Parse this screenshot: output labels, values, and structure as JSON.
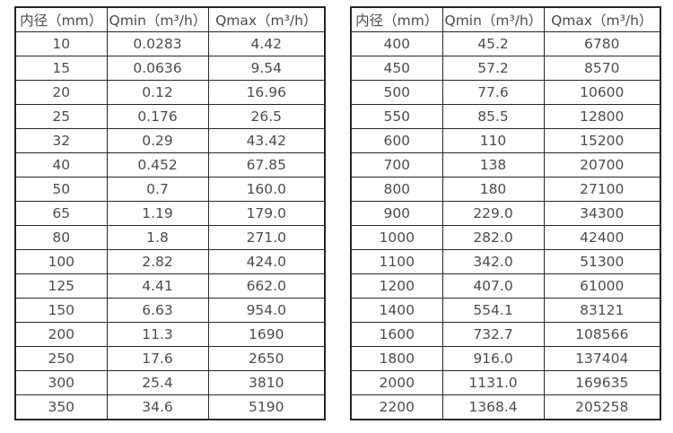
{
  "chart_data": [
    {
      "type": "table",
      "title": "",
      "headers": [
        "内径（mm）",
        "Qmin（m³/h）",
        "Qmax（m³/h）"
      ],
      "rows": [
        [
          "10",
          "0.0283",
          "4.42"
        ],
        [
          "15",
          "0.0636",
          "9.54"
        ],
        [
          "20",
          "0.12",
          "16.96"
        ],
        [
          "25",
          "0.176",
          "26.5"
        ],
        [
          "32",
          "0.29",
          "43.42"
        ],
        [
          "40",
          "0.452",
          "67.85"
        ],
        [
          "50",
          "0.7",
          "160.0"
        ],
        [
          "65",
          "1.19",
          "179.0"
        ],
        [
          "80",
          "1.8",
          "271.0"
        ],
        [
          "100",
          "2.82",
          "424.0"
        ],
        [
          "125",
          "4.41",
          "662.0"
        ],
        [
          "150",
          "6.63",
          "954.0"
        ],
        [
          "200",
          "11.3",
          "1690"
        ],
        [
          "250",
          "17.6",
          "2650"
        ],
        [
          "300",
          "25.4",
          "3810"
        ],
        [
          "350",
          "34.6",
          "5190"
        ]
      ]
    },
    {
      "type": "table",
      "title": "",
      "headers": [
        "内径（mm）",
        "Qmin（m³/h）",
        "Qmax（m³/h）"
      ],
      "rows": [
        [
          "400",
          "45.2",
          "6780"
        ],
        [
          "450",
          "57.2",
          "8570"
        ],
        [
          "500",
          "77.6",
          "10600"
        ],
        [
          "550",
          "85.5",
          "12800"
        ],
        [
          "600",
          "110",
          "15200"
        ],
        [
          "700",
          "138",
          "20700"
        ],
        [
          "800",
          "180",
          "27100"
        ],
        [
          "900",
          "229.0",
          "34300"
        ],
        [
          "1000",
          "282.0",
          "42400"
        ],
        [
          "1100",
          "342.0",
          "51300"
        ],
        [
          "1200",
          "407.0",
          "61000"
        ],
        [
          "1400",
          "554.1",
          "83121"
        ],
        [
          "1600",
          "732.7",
          "108566"
        ],
        [
          "1800",
          "916.0",
          "137404"
        ],
        [
          "2000",
          "1131.0",
          "169635"
        ],
        [
          "2200",
          "1368.4",
          "205258"
        ]
      ]
    }
  ],
  "style": {
    "border_color": "#262626",
    "text_color": "#4c4c4c",
    "background_color": "#ffffff"
  }
}
